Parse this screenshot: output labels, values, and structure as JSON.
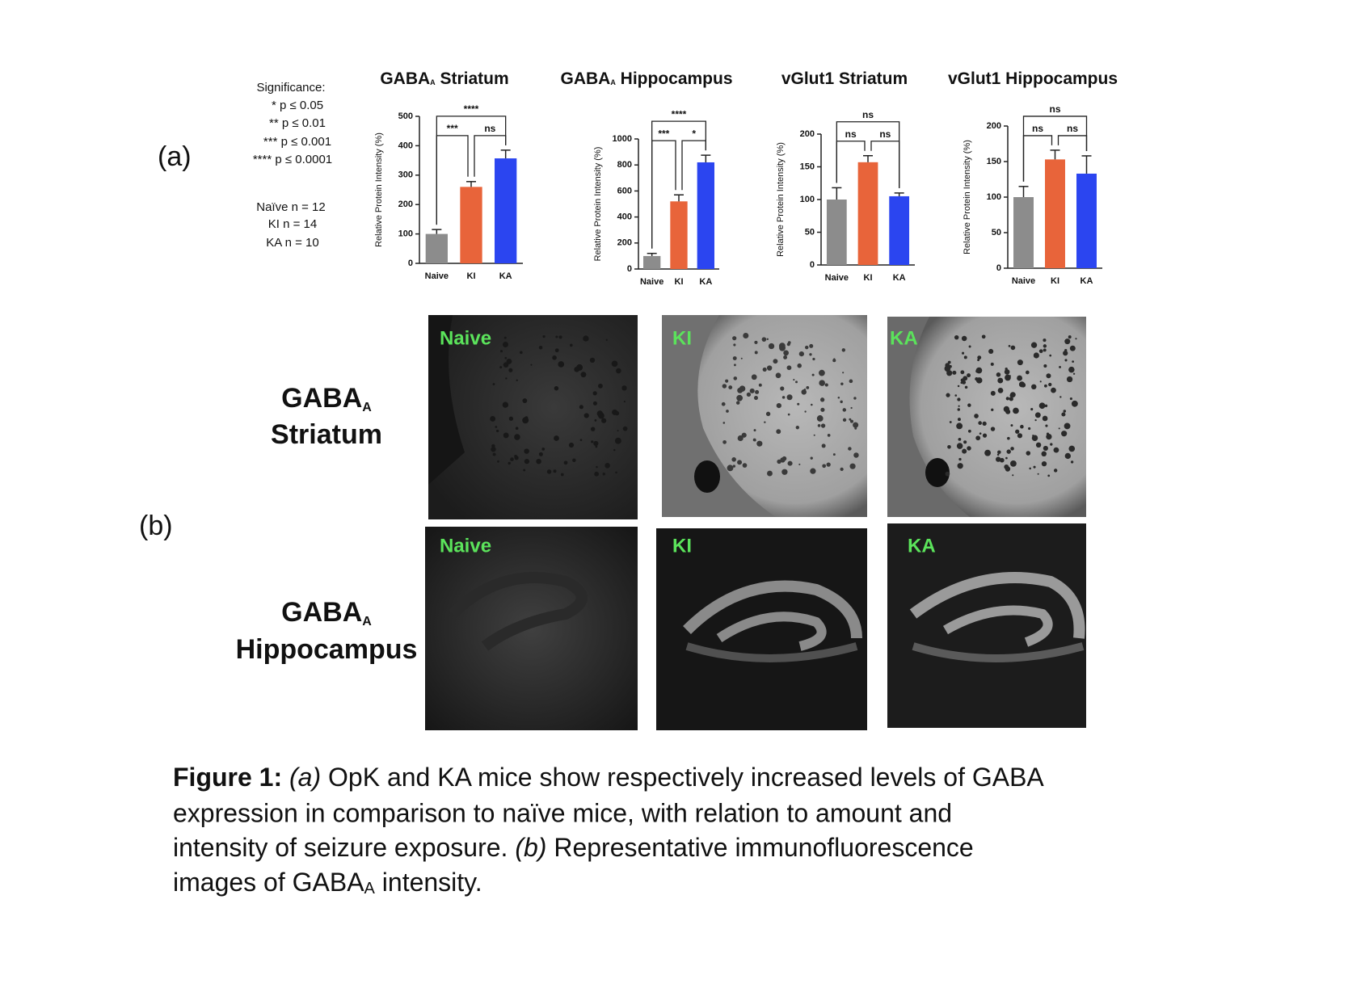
{
  "panel_labels": [
    "(a)",
    "(b)"
  ],
  "significance": {
    "title": "Significance:",
    "levels": [
      "* p ≤ 0.05",
      "** p ≤ 0.01",
      "*** p ≤ 0.001",
      "**** p ≤ 0.0001"
    ]
  },
  "sample_sizes": [
    "Naïve n = 12",
    "KI n = 14",
    "KA n = 10"
  ],
  "chart_data": [
    {
      "type": "bar",
      "title": [
        "GABA",
        "A",
        " Striatum"
      ],
      "y_label": "Relative Protein Intensity (%)",
      "categories": [
        "Naive",
        "KI",
        "KA"
      ],
      "values": [
        100,
        260,
        357
      ],
      "errors": [
        15,
        18,
        28
      ],
      "colors": [
        "#8c8c8c",
        "#e8643a",
        "#2b45f0"
      ],
      "ylim": [
        0,
        500
      ],
      "yticks": [
        0,
        100,
        200,
        300,
        400,
        500
      ],
      "brackets": [
        {
          "from": 0,
          "to": 1,
          "label": "***"
        },
        {
          "from": 1,
          "to": 2,
          "label": "ns"
        },
        {
          "from": 0,
          "to": 2,
          "label": "****"
        }
      ]
    },
    {
      "type": "bar",
      "title": [
        "GABA",
        "A",
        " Hippocampus"
      ],
      "y_label": "Relative Protein Intensity (%)",
      "categories": [
        "Naive",
        "KI",
        "KA"
      ],
      "values": [
        100,
        520,
        820
      ],
      "errors": [
        20,
        50,
        55
      ],
      "colors": [
        "#8c8c8c",
        "#e8643a",
        "#2b45f0"
      ],
      "ylim": [
        0,
        1000
      ],
      "yticks": [
        0,
        200,
        400,
        600,
        800,
        1000
      ],
      "brackets": [
        {
          "from": 0,
          "to": 1,
          "label": "***"
        },
        {
          "from": 1,
          "to": 2,
          "label": "*"
        },
        {
          "from": 0,
          "to": 2,
          "label": "****"
        }
      ]
    },
    {
      "type": "bar",
      "title": [
        "vGlut1 Striatum"
      ],
      "y_label": "Relative Protein Intensity (%)",
      "categories": [
        "Naive",
        "KI",
        "KA"
      ],
      "values": [
        100,
        157,
        105
      ],
      "errors": [
        18,
        10,
        5
      ],
      "colors": [
        "#8c8c8c",
        "#e8643a",
        "#2b45f0"
      ],
      "ylim": [
        0,
        200
      ],
      "yticks": [
        0,
        50,
        100,
        150,
        200
      ],
      "brackets": [
        {
          "from": 0,
          "to": 1,
          "label": "ns"
        },
        {
          "from": 1,
          "to": 2,
          "label": "ns"
        },
        {
          "from": 0,
          "to": 2,
          "label": "ns"
        }
      ]
    },
    {
      "type": "bar",
      "title": [
        "vGlut1 Hippocampus"
      ],
      "y_label": "Relative Protein Intensity (%)",
      "categories": [
        "Naive",
        "KI",
        "KA"
      ],
      "values": [
        100,
        153,
        133
      ],
      "errors": [
        15,
        13,
        25
      ],
      "colors": [
        "#8c8c8c",
        "#e8643a",
        "#2b45f0"
      ],
      "ylim": [
        0,
        200
      ],
      "yticks": [
        0,
        50,
        100,
        150,
        200
      ],
      "brackets": [
        {
          "from": 0,
          "to": 1,
          "label": "ns"
        },
        {
          "from": 1,
          "to": 2,
          "label": "ns"
        },
        {
          "from": 0,
          "to": 2,
          "label": "ns"
        }
      ]
    }
  ],
  "images": {
    "rows": [
      {
        "label": [
          "GABA",
          "A",
          "Striatum"
        ],
        "panels": [
          "Naive",
          "KI",
          "KA"
        ]
      },
      {
        "label": [
          "GABA",
          "A",
          "Hippocampus"
        ],
        "panels": [
          "Naive",
          "KI",
          "KA"
        ]
      }
    ]
  },
  "caption": {
    "lines": [
      [
        "Figure 1:",
        "(a)",
        " OpK and KA mice show respectively increased levels of GABA"
      ],
      [
        "expression in comparison to naïve mice, with relation to amount and"
      ],
      [
        "intensity of seizure exposure. ",
        "(b)",
        " Representative immunofluorescence"
      ],
      [
        "images of GABA",
        "A",
        " intensity."
      ]
    ]
  }
}
